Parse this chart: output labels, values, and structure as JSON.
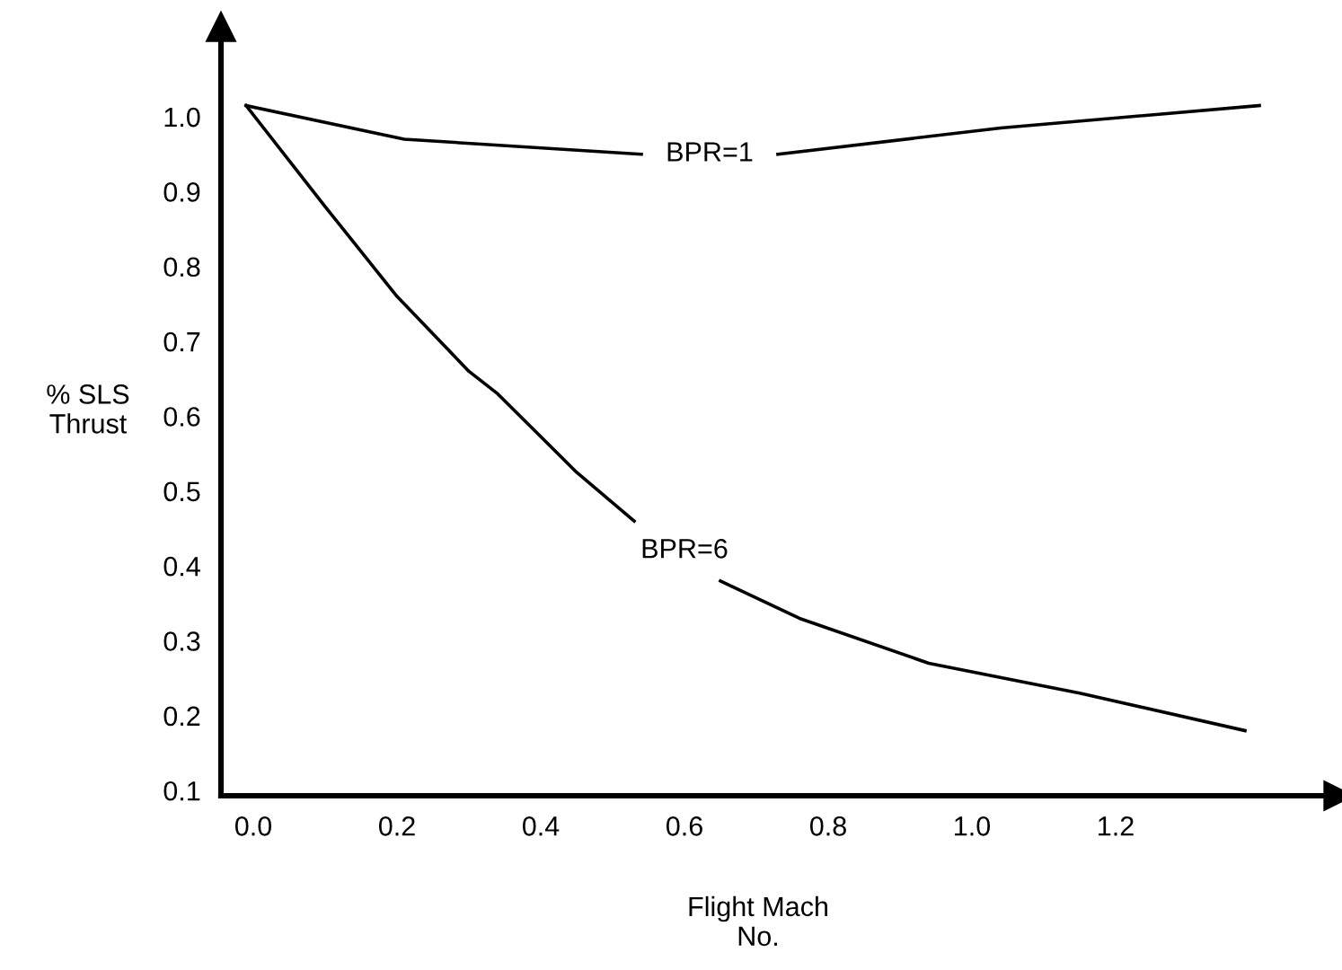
{
  "chart_data": {
    "type": "line",
    "xlabel": "Flight Mach\nNo.",
    "ylabel": "% SLS\nThrust",
    "xlim": [
      -0.045,
      1.51
    ],
    "ylim": [
      0.093,
      1.12
    ],
    "xticks": [
      {
        "value": 0,
        "label": "0.0"
      },
      0.2,
      0.4,
      0.6,
      0.8,
      {
        "value": 1,
        "label": "1.0"
      },
      1.2
    ],
    "yticks": [
      0.1,
      0.2,
      0.3,
      0.4,
      0.5,
      0.6,
      0.7,
      0.8,
      0.9,
      {
        "value": 1,
        "label": "1.0"
      }
    ],
    "grid": false,
    "marker": "none",
    "line_style": "solid",
    "series": [
      {
        "name": "BPR=1",
        "color": "#000000",
        "x": [
          -0.01,
          0.21,
          0.54,
          0.635,
          0.73,
          1.04,
          1.4
        ],
        "values": [
          1.015,
          0.97,
          0.95,
          null,
          0.95,
          0.985,
          1.015
        ]
      },
      {
        "name": "BPR=6",
        "color": "#000000",
        "x": [
          -0.01,
          0.1,
          0.2,
          0.3,
          0.34,
          0.45,
          0.53,
          0.6,
          0.65,
          0.76,
          0.94,
          1.15,
          1.38
        ],
        "values": [
          1.015,
          0.88,
          0.76,
          0.66,
          0.63,
          0.525,
          0.46,
          null,
          0.38,
          0.33,
          0.27,
          0.23,
          0.18
        ]
      }
    ]
  }
}
